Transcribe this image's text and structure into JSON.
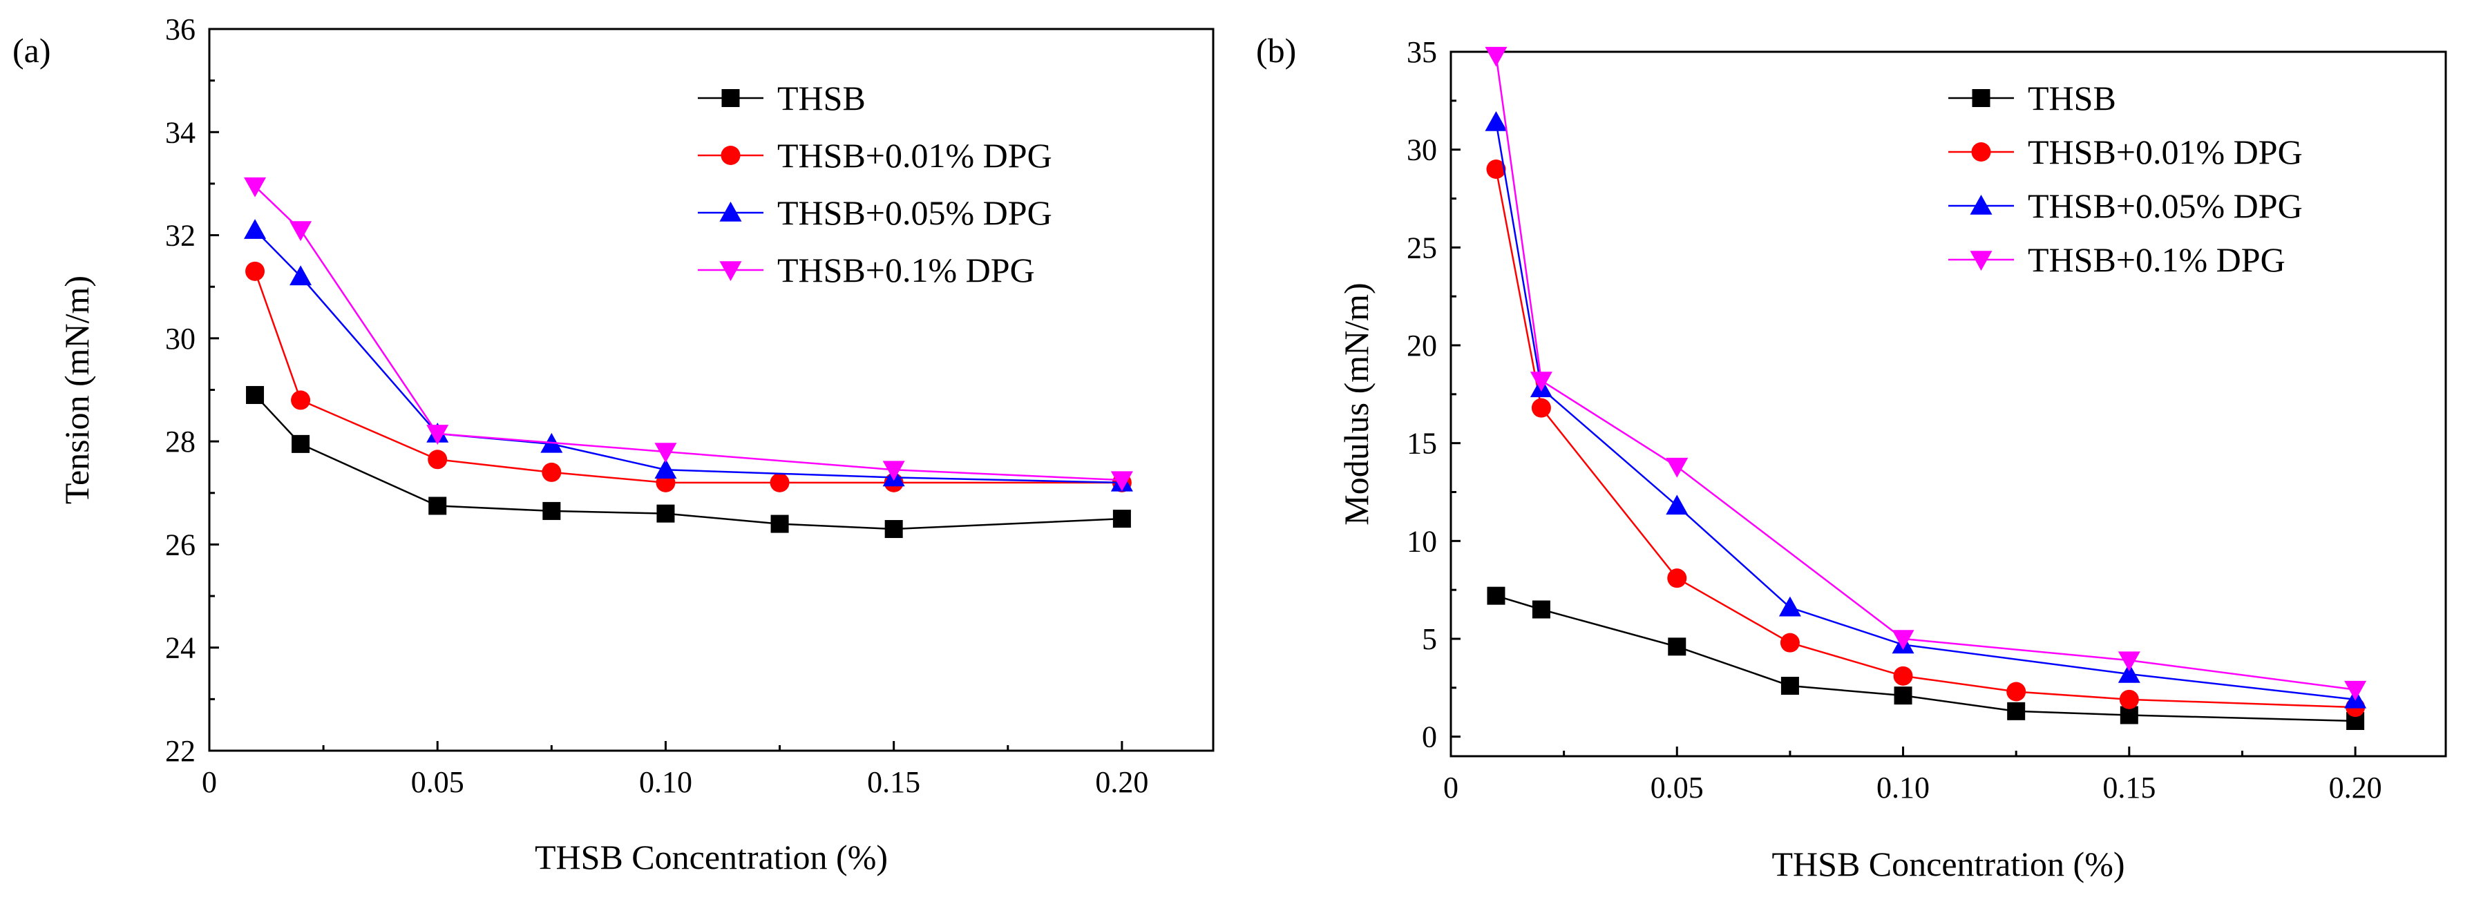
{
  "figure": {
    "panels": [
      "(a)",
      "(b)"
    ]
  },
  "chart_data": [
    {
      "type": "line",
      "panel_label": "(a)",
      "title": "",
      "xlabel": "THSB Concentration (%)",
      "ylabel": "Tension (mN/m)",
      "xlim": [
        0,
        0.22
      ],
      "ylim": [
        22,
        36
      ],
      "xticks": [
        0,
        0.05,
        0.1,
        0.15,
        0.2
      ],
      "xtick_labels": [
        "0",
        "0.05",
        "0.10",
        "0.15",
        "0.20"
      ],
      "yticks": [
        22,
        24,
        26,
        28,
        30,
        32,
        34,
        36
      ],
      "ytick_labels": [
        "22",
        "24",
        "26",
        "28",
        "30",
        "32",
        "34",
        "36"
      ],
      "grid": false,
      "legend_position": "top-right",
      "series": [
        {
          "name": "THSB",
          "color": "#000000",
          "marker": "square",
          "x": [
            0.01,
            0.02,
            0.05,
            0.075,
            0.1,
            0.125,
            0.15,
            0.2
          ],
          "y": [
            28.9,
            27.95,
            26.75,
            26.65,
            26.6,
            26.4,
            26.3,
            26.5
          ]
        },
        {
          "name": "THSB+0.01% DPG",
          "color": "#ff0000",
          "marker": "circle",
          "x": [
            0.01,
            0.02,
            0.05,
            0.075,
            0.1,
            0.125,
            0.15,
            0.2
          ],
          "y": [
            31.3,
            28.8,
            27.65,
            27.4,
            27.2,
            27.2,
            27.2,
            27.2
          ]
        },
        {
          "name": "THSB+0.05% DPG",
          "color": "#0000ff",
          "marker": "triangle-up",
          "x": [
            0.01,
            0.02,
            0.05,
            0.075,
            0.1,
            0.15,
            0.2
          ],
          "y": [
            32.1,
            31.2,
            28.15,
            27.95,
            27.45,
            27.3,
            27.2
          ]
        },
        {
          "name": "THSB+0.1% DPG",
          "color": "#ff00ff",
          "marker": "triangle-down",
          "x": [
            0.01,
            0.02,
            0.05,
            0.1,
            0.15,
            0.2
          ],
          "y": [
            32.95,
            32.1,
            28.15,
            27.8,
            27.45,
            27.25
          ]
        }
      ]
    },
    {
      "type": "line",
      "panel_label": "(b)",
      "title": "",
      "xlabel": "THSB Concentration (%)",
      "ylabel": "Modulus (mN/m)",
      "xlim": [
        0,
        0.22
      ],
      "ylim": [
        -1,
        35
      ],
      "xticks": [
        0,
        0.05,
        0.1,
        0.15,
        0.2
      ],
      "xtick_labels": [
        "0",
        "0.05",
        "0.10",
        "0.15",
        "0.20"
      ],
      "yticks": [
        0,
        5,
        10,
        15,
        20,
        25,
        30,
        35
      ],
      "ytick_labels": [
        "0",
        "5",
        "10",
        "15",
        "20",
        "25",
        "30",
        "35"
      ],
      "grid": false,
      "legend_position": "top-right",
      "series": [
        {
          "name": "THSB",
          "color": "#000000",
          "marker": "square",
          "x": [
            0.01,
            0.02,
            0.05,
            0.075,
            0.1,
            0.125,
            0.15,
            0.2
          ],
          "y": [
            7.2,
            6.5,
            4.6,
            2.6,
            2.1,
            1.3,
            1.1,
            0.8
          ]
        },
        {
          "name": "THSB+0.01% DPG",
          "color": "#ff0000",
          "marker": "circle",
          "x": [
            0.01,
            0.02,
            0.05,
            0.075,
            0.1,
            0.125,
            0.15,
            0.2
          ],
          "y": [
            29.0,
            16.8,
            8.1,
            4.8,
            3.1,
            2.3,
            1.9,
            1.5
          ]
        },
        {
          "name": "THSB+0.05% DPG",
          "color": "#0000ff",
          "marker": "triangle-up",
          "x": [
            0.01,
            0.02,
            0.05,
            0.075,
            0.1,
            0.15,
            0.2
          ],
          "y": [
            31.4,
            17.8,
            11.8,
            6.6,
            4.7,
            3.2,
            1.9
          ]
        },
        {
          "name": "THSB+0.1% DPG",
          "color": "#ff00ff",
          "marker": "triangle-down",
          "x": [
            0.01,
            0.02,
            0.05,
            0.1,
            0.15,
            0.2
          ],
          "y": [
            34.8,
            18.2,
            13.8,
            5.0,
            3.9,
            2.4
          ]
        }
      ]
    }
  ]
}
